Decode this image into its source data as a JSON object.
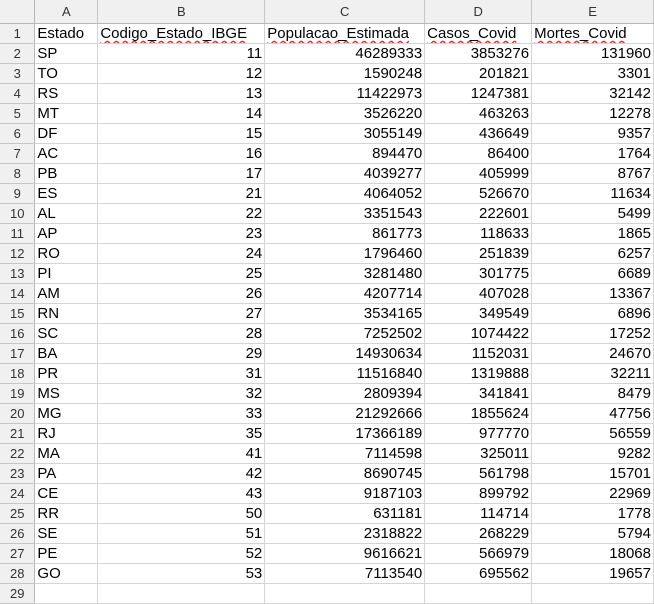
{
  "sheet": {
    "columns": [
      "A",
      "B",
      "C",
      "D",
      "E"
    ],
    "rows": [
      [
        "Estado",
        "Codigo_Estado_IBGE",
        "Populacao_Estimada",
        "Casos_Covid",
        "Mortes_Covid"
      ],
      [
        "SP",
        "11",
        "46289333",
        "3853276",
        "131960"
      ],
      [
        "TO",
        "12",
        "1590248",
        "201821",
        "3301"
      ],
      [
        "RS",
        "13",
        "11422973",
        "1247381",
        "32142"
      ],
      [
        "MT",
        "14",
        "3526220",
        "463263",
        "12278"
      ],
      [
        "DF",
        "15",
        "3055149",
        "436649",
        "9357"
      ],
      [
        "AC",
        "16",
        "894470",
        "86400",
        "1764"
      ],
      [
        "PB",
        "17",
        "4039277",
        "405999",
        "8767"
      ],
      [
        "ES",
        "21",
        "4064052",
        "526670",
        "11634"
      ],
      [
        "AL",
        "22",
        "3351543",
        "222601",
        "5499"
      ],
      [
        "AP",
        "23",
        "861773",
        "118633",
        "1865"
      ],
      [
        "RO",
        "24",
        "1796460",
        "251839",
        "6257"
      ],
      [
        "PI",
        "25",
        "3281480",
        "301775",
        "6689"
      ],
      [
        "AM",
        "26",
        "4207714",
        "407028",
        "13367"
      ],
      [
        "RN",
        "27",
        "3534165",
        "349549",
        "6896"
      ],
      [
        "SC",
        "28",
        "7252502",
        "1074422",
        "17252"
      ],
      [
        "BA",
        "29",
        "14930634",
        "1152031",
        "24670"
      ],
      [
        "PR",
        "31",
        "11516840",
        "1319888",
        "32211"
      ],
      [
        "MS",
        "32",
        "2809394",
        "341841",
        "8479"
      ],
      [
        "MG",
        "33",
        "21292666",
        "1855624",
        "47756"
      ],
      [
        "RJ",
        "35",
        "17366189",
        "977770",
        "56559"
      ],
      [
        "MA",
        "41",
        "7114598",
        "325011",
        "9282"
      ],
      [
        "PA",
        "42",
        "8690745",
        "561798",
        "15701"
      ],
      [
        "CE",
        "43",
        "9187103",
        "899792",
        "22969"
      ],
      [
        "RR",
        "50",
        "631181",
        "114714",
        "1778"
      ],
      [
        "SE",
        "51",
        "2318822",
        "268229",
        "5794"
      ],
      [
        "PE",
        "52",
        "9616621",
        "566979",
        "18068"
      ],
      [
        "GO",
        "53",
        "7113540",
        "695562",
        "19657"
      ],
      [
        "",
        "",
        "",
        "",
        ""
      ]
    ]
  }
}
